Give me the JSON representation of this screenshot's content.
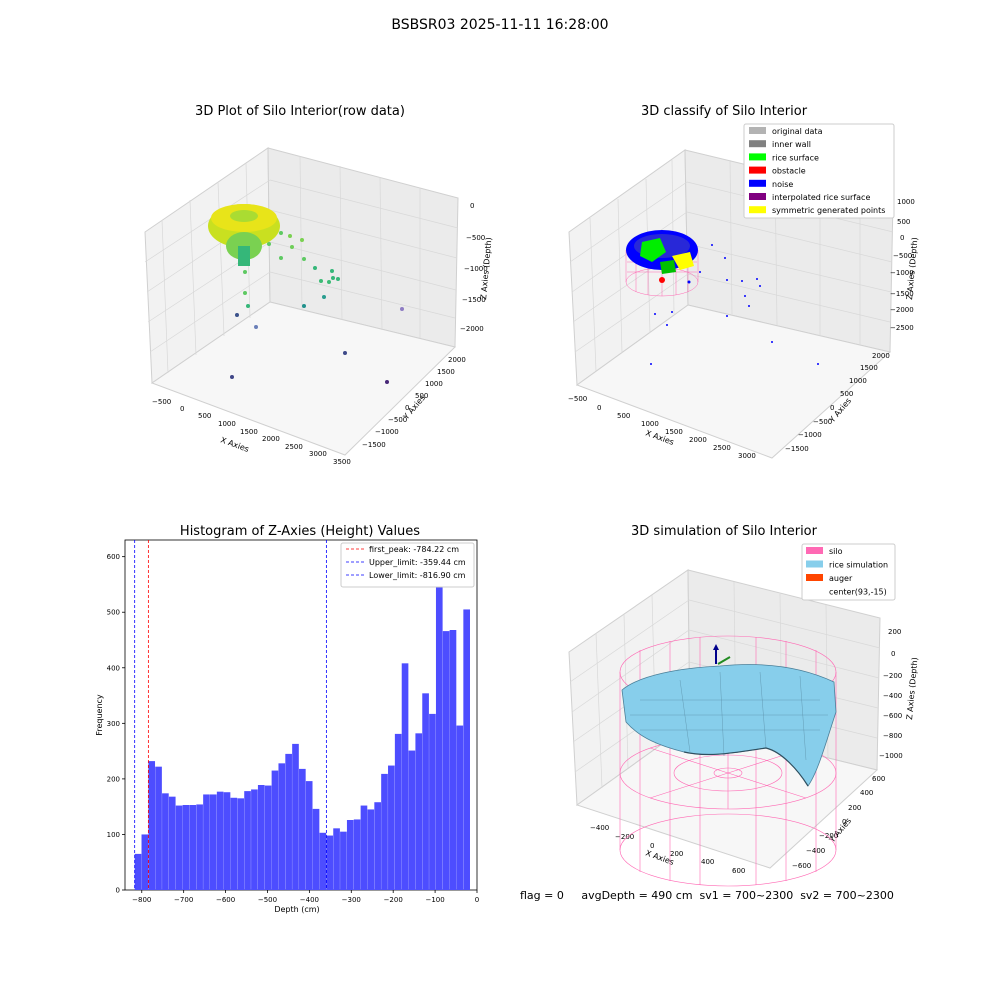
{
  "figure": {
    "suptitle": "BSBSR03 2025-11-11 16:28:00"
  },
  "footer": {
    "text": "flag = 0     avgDepth = 490 cm  sv1 = 700~2300  sv2 = 700~2300"
  },
  "chart_data": [
    {
      "type": "scatter",
      "title": "3D Plot of Silo Interior(row data)",
      "xlabel": "X Axies",
      "ylabel": "Y Axies",
      "zlabel": "Z Axies (Depth)",
      "xticks": [
        "-500",
        "0",
        "500",
        "1000",
        "1500",
        "2000",
        "2500",
        "3000",
        "3500"
      ],
      "yticks": [
        "-1500",
        "-1000",
        "-500",
        "0",
        "500",
        "1000",
        "1500",
        "2000"
      ],
      "zticks": [
        "0",
        "-500",
        "-1000",
        "-1500",
        "-2000"
      ],
      "colormap": [
        "#440154",
        "#3b528b",
        "#21918c",
        "#5ec962",
        "#fde725"
      ],
      "annotation": "dense ring-shaped point cloud near (0,0,-500) with scattered outliers"
    },
    {
      "type": "scatter",
      "title": "3D classify of Silo Interior",
      "xlabel": "X Axies",
      "ylabel": "Y Axies",
      "zlabel": "Z Axies (Depth)",
      "xticks": [
        "-500",
        "0",
        "500",
        "1000",
        "1500",
        "2000",
        "2500",
        "3000"
      ],
      "yticks": [
        "-1500",
        "-1000",
        "-500",
        "0",
        "500",
        "1000",
        "1500",
        "2000"
      ],
      "zticks": [
        "1000",
        "500",
        "0",
        "-500",
        "-1000",
        "-1500",
        "-2000",
        "-2500"
      ],
      "legend_position": "top-right",
      "legend": [
        {
          "name": "original data",
          "color": "#b3b3b3"
        },
        {
          "name": "inner wall",
          "color": "#808080"
        },
        {
          "name": "rice surface",
          "color": "#00ff00"
        },
        {
          "name": "obstacle",
          "color": "#ff0000"
        },
        {
          "name": "noise",
          "color": "#0000ff"
        },
        {
          "name": "interpolated rice surface",
          "color": "#800080"
        },
        {
          "name": "symmetric generated points",
          "color": "#ffff00"
        }
      ]
    },
    {
      "type": "bar",
      "title": "Histogram of Z-Axies (Height) Values",
      "xlabel": "Depth (cm)",
      "ylabel": "Frequency",
      "xlim": [
        -840,
        0
      ],
      "ylim": [
        0,
        630
      ],
      "xticks": [
        -800,
        -700,
        -600,
        -500,
        -400,
        -300,
        -200,
        -100,
        0
      ],
      "yticks": [
        0,
        100,
        200,
        300,
        400,
        500,
        600
      ],
      "bin_width": 16.34,
      "bin_start": -816.9,
      "bar_color": "#4d4dff",
      "values": [
        65,
        100,
        232,
        222,
        174,
        168,
        152,
        153,
        153,
        154,
        172,
        172,
        177,
        176,
        166,
        165,
        178,
        181,
        189,
        188,
        215,
        228,
        245,
        263,
        218,
        196,
        146,
        103,
        98,
        111,
        105,
        126,
        127,
        152,
        145,
        158,
        209,
        224,
        281,
        408,
        251,
        282,
        354,
        317,
        597,
        466,
        468,
        296,
        505
      ],
      "legend_position": "top-right",
      "vlines": [
        {
          "label": "first_peak: -784.22 cm",
          "x": -784.22,
          "color": "#ff0000"
        },
        {
          "label": "Upper_limit: -359.44 cm",
          "x": -359.44,
          "color": "#0000ff"
        },
        {
          "label": "Lower_limit: -816.90 cm",
          "x": -816.9,
          "color": "#0000ff"
        }
      ]
    },
    {
      "type": "surface",
      "title": "3D simulation of Silo Interior",
      "xlabel": "X Axies",
      "ylabel": "Y Axies",
      "zlabel": "Z Axies (Depth)",
      "xticks": [
        "-400",
        "-200",
        "0",
        "200",
        "400",
        "600"
      ],
      "yticks": [
        "-600",
        "-400",
        "-200",
        "0",
        "200",
        "400",
        "600"
      ],
      "zticks": [
        "200",
        "0",
        "-200",
        "-400",
        "-600",
        "-800",
        "-1000"
      ],
      "legend_position": "top-right",
      "legend": [
        {
          "name": "silo",
          "color": "#ff69b4"
        },
        {
          "name": "rice simulation",
          "color": "#87ceeb"
        },
        {
          "name": "auger",
          "color": "#ff4500"
        },
        {
          "name": "center(93,-15)",
          "color": ""
        }
      ]
    }
  ]
}
